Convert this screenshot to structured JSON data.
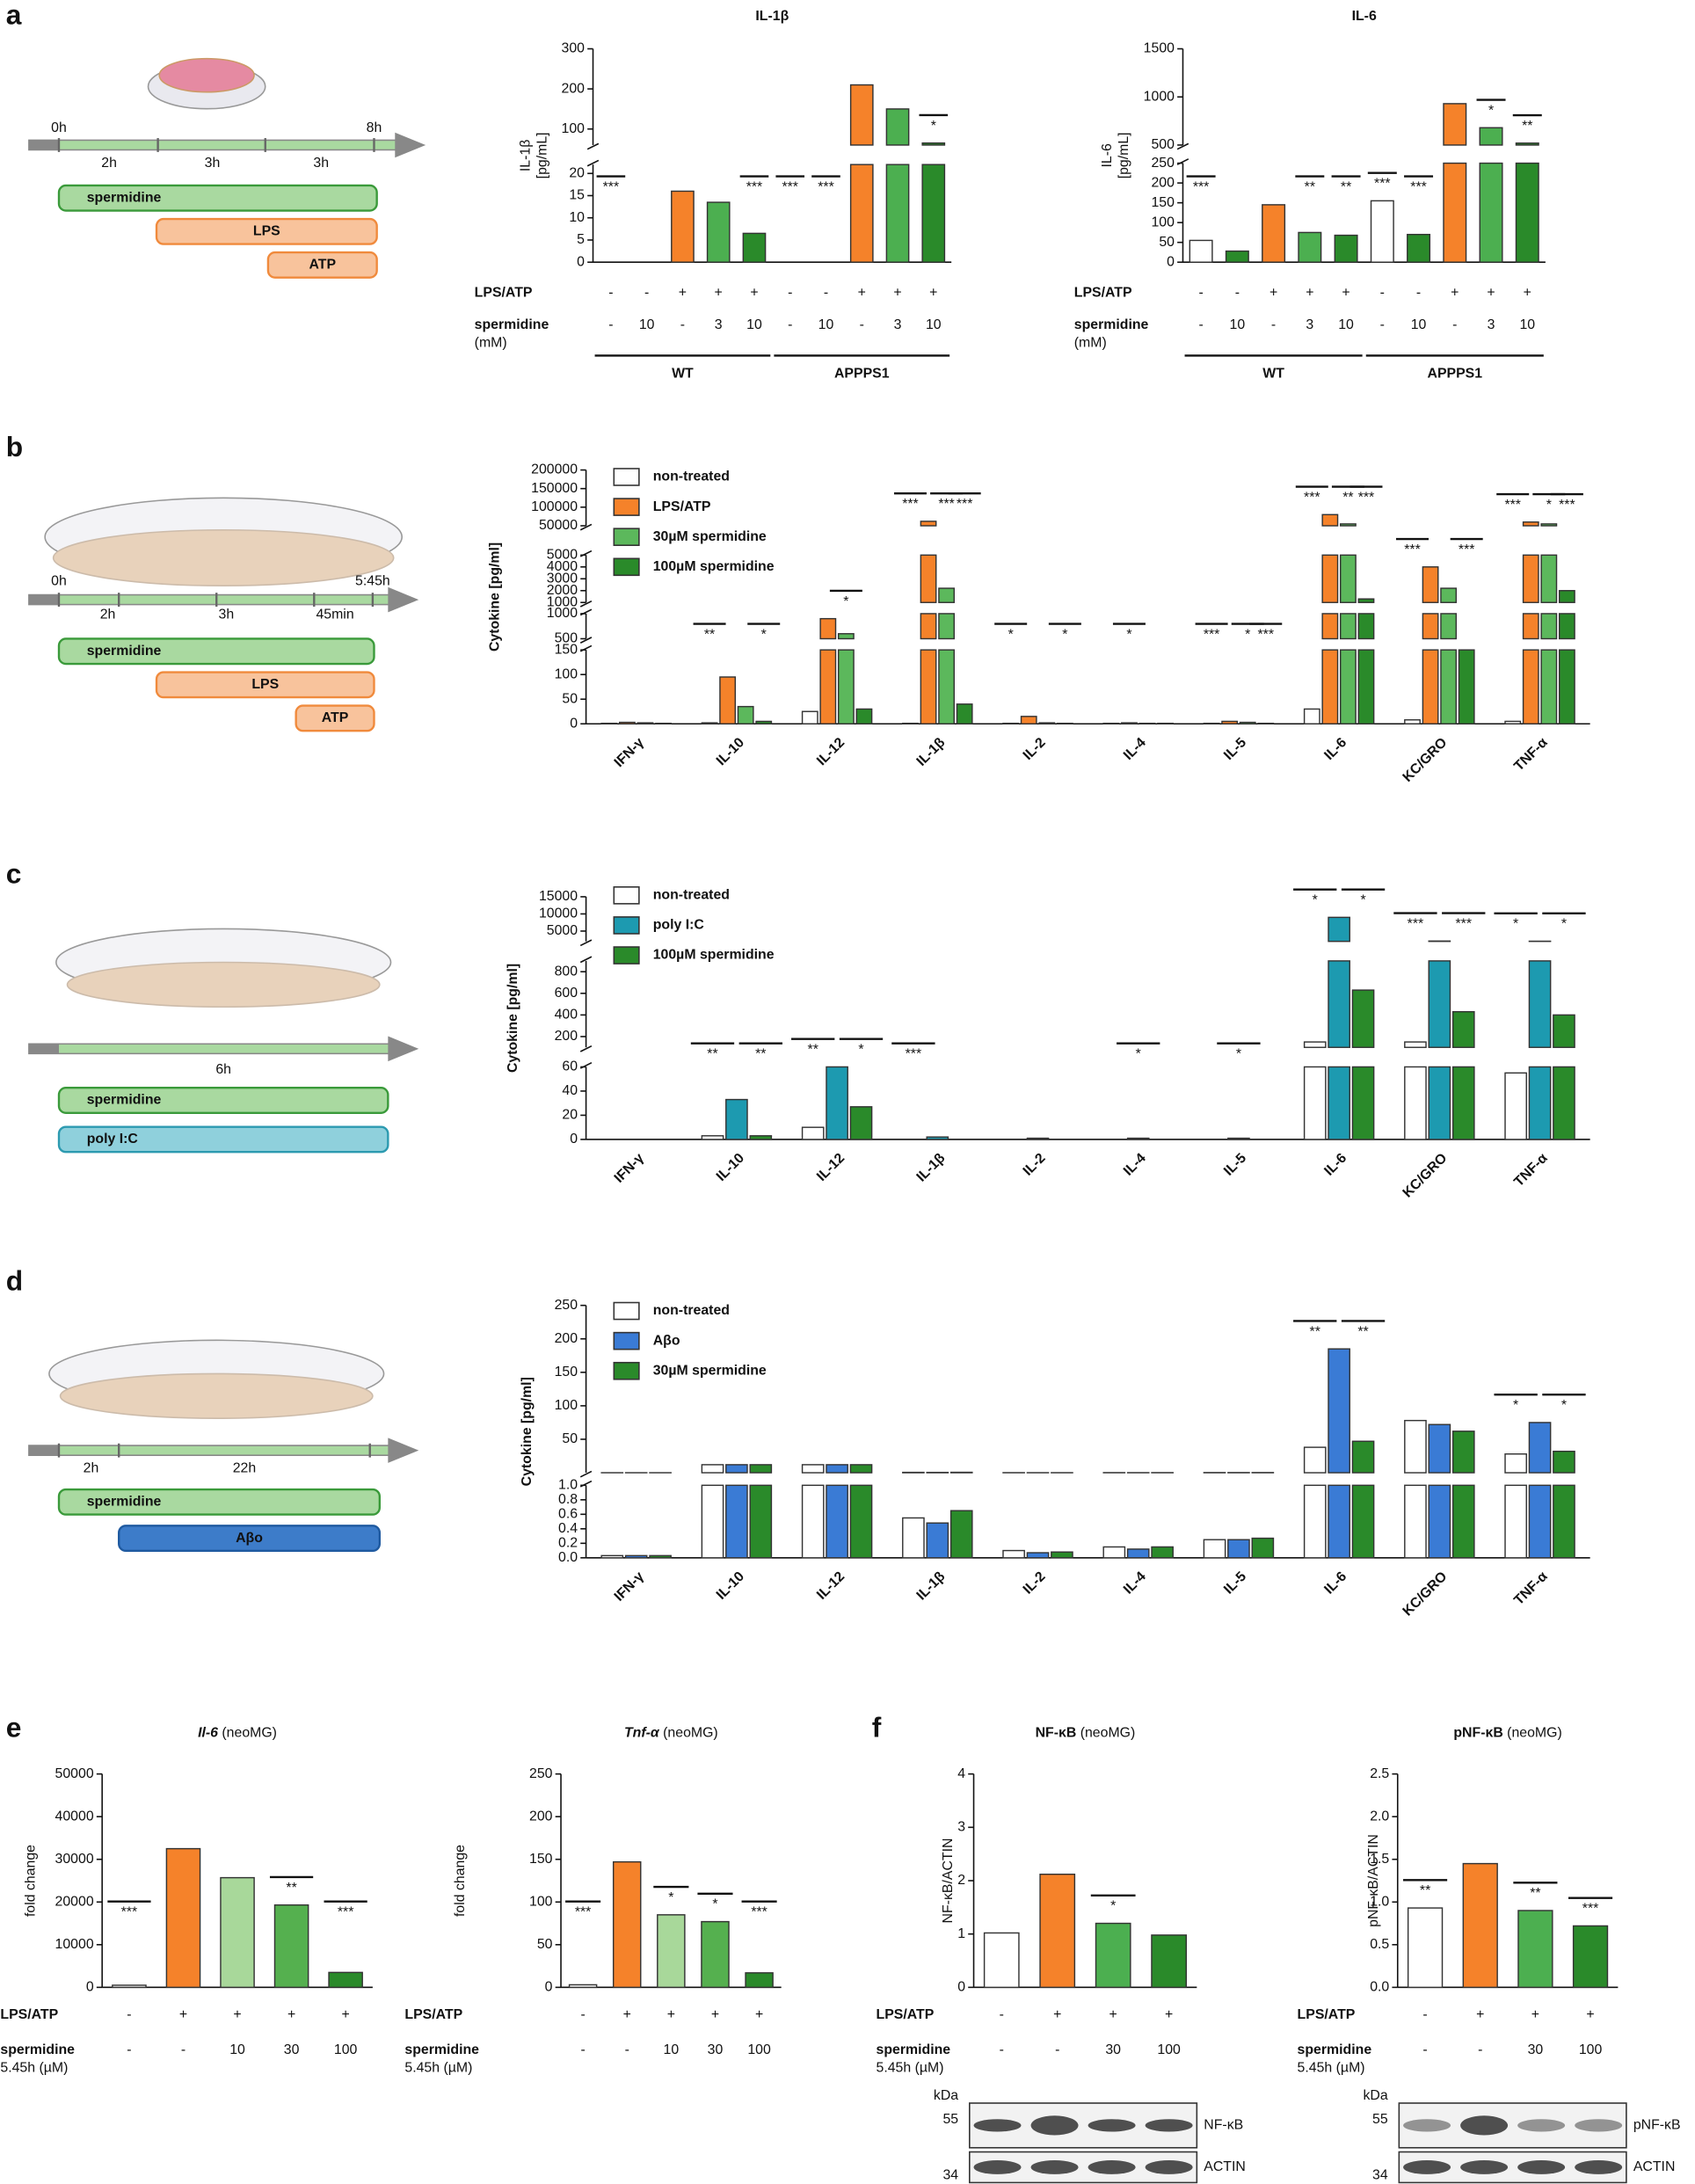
{
  "panels": [
    "a",
    "b",
    "c",
    "d",
    "e",
    "f"
  ],
  "diagrams": [
    {
      "times": [
        "0h",
        "8h"
      ],
      "intervals": [
        "2h",
        "3h",
        "3h"
      ],
      "treatments": [
        "spermidine",
        "LPS",
        "ATP"
      ]
    },
    {
      "times": [
        "0h",
        "5:45h"
      ],
      "intervals": [
        "2h",
        "3h",
        "45min"
      ],
      "treatments": [
        "spermidine",
        "LPS",
        "ATP"
      ]
    },
    {
      "times": [],
      "intervals": [
        "6h"
      ],
      "treatments": [
        "spermidine",
        "poly I:C"
      ]
    },
    {
      "times": [],
      "intervals": [
        "2h",
        "22h"
      ],
      "treatments": [
        "spermidine",
        "Aβo"
      ]
    }
  ],
  "blots": [
    {
      "unit": "kDa",
      "markers": [
        "55",
        "34"
      ],
      "bands": [
        "NF-κB",
        "ACTIN"
      ]
    },
    {
      "unit": "kDa",
      "markers": [
        "55",
        "34"
      ],
      "bands": [
        "pNF-κB",
        "ACTIN"
      ]
    }
  ],
  "chart_data": [
    {
      "type": "bar",
      "title": "IL-1β",
      "ylabel": [
        "IL-1β",
        "[pg/mL]"
      ],
      "values": [
        0,
        0,
        16,
        13.5,
        6.5,
        0,
        0,
        210,
        150,
        65
      ],
      "colors": [
        "#ffffff",
        "#2a8a2a",
        "#f5822a",
        "#4caf50",
        "#2a8a2a",
        "#ffffff",
        "#2a8a2a",
        "#f5822a",
        "#4caf50",
        "#2a8a2a"
      ],
      "ysegments": [
        {
          "ylim": [
            0,
            22
          ],
          "yticks": [
            0,
            5,
            10,
            15,
            20
          ]
        },
        {
          "ylim": [
            60,
            300
          ],
          "yticks": [
            100,
            200,
            300
          ]
        }
      ],
      "rows": [
        {
          "label": "LPS/ATP",
          "cells": [
            "-",
            "-",
            "+",
            "+",
            "+",
            "-",
            "-",
            "+",
            "+",
            "+"
          ]
        },
        {
          "label": "spermidine",
          "sublabel": "(mM)",
          "cells": [
            "-",
            "10",
            "-",
            "3",
            "10",
            "-",
            "10",
            "-",
            "3",
            "10"
          ]
        }
      ],
      "groups": [
        {
          "label": "WT",
          "from": 0,
          "to": 4
        },
        {
          "label": "APPPS1",
          "from": 5,
          "to": 9
        }
      ],
      "annotations": [
        {
          "text": "***",
          "category": 0
        },
        {
          "text": "***",
          "category": 4
        },
        {
          "text": "***",
          "category": 5
        },
        {
          "text": "***",
          "category": 6
        },
        {
          "text": "*",
          "category": 9
        }
      ]
    },
    {
      "type": "bar",
      "title": "IL-6",
      "ylabel": [
        "IL-6",
        "[pg/mL]"
      ],
      "values": [
        55,
        28,
        145,
        75,
        68,
        155,
        70,
        930,
        680,
        520
      ],
      "colors": [
        "#ffffff",
        "#2a8a2a",
        "#f5822a",
        "#4caf50",
        "#2a8a2a",
        "#ffffff",
        "#2a8a2a",
        "#f5822a",
        "#4caf50",
        "#2a8a2a"
      ],
      "ysegments": [
        {
          "ylim": [
            0,
            250
          ],
          "yticks": [
            0,
            50,
            100,
            150,
            200,
            250
          ]
        },
        {
          "ylim": [
            500,
            1500
          ],
          "yticks": [
            500,
            1000,
            1500
          ]
        }
      ],
      "rows": [
        {
          "label": "LPS/ATP",
          "cells": [
            "-",
            "-",
            "+",
            "+",
            "+",
            "-",
            "-",
            "+",
            "+",
            "+"
          ]
        },
        {
          "label": "spermidine",
          "sublabel": "(mM)",
          "cells": [
            "-",
            "10",
            "-",
            "3",
            "10",
            "-",
            "10",
            "-",
            "3",
            "10"
          ]
        }
      ],
      "groups": [
        {
          "label": "WT",
          "from": 0,
          "to": 4
        },
        {
          "label": "APPPS1",
          "from": 5,
          "to": 9
        }
      ],
      "annotations": [
        {
          "text": "***",
          "category": 0
        },
        {
          "text": "**",
          "category": 3
        },
        {
          "text": "**",
          "category": 4
        },
        {
          "text": "***",
          "category": 5
        },
        {
          "text": "***",
          "category": 6
        },
        {
          "text": "*",
          "category": 8
        },
        {
          "text": "**",
          "category": 9
        }
      ]
    },
    {
      "type": "bar",
      "ylabel": [
        "Cytokine [pg/ml]"
      ],
      "categories": [
        "IFN-γ",
        "IL-10",
        "IL-12",
        "IL-1β",
        "IL-2",
        "IL-4",
        "IL-5",
        "IL-6",
        "KC/GRO",
        "TNF-α"
      ],
      "series": [
        {
          "name": "non-treated",
          "color": "#ffffff",
          "values": [
            1,
            2,
            25,
            1,
            1,
            1,
            1,
            30,
            8,
            5
          ]
        },
        {
          "name": "LPS/ATP",
          "color": "#f5822a",
          "values": [
            3,
            95,
            900,
            62000,
            15,
            2,
            5,
            80000,
            4000,
            60000
          ]
        },
        {
          "name": "30µM spermidine",
          "color": "#5cb85c",
          "values": [
            2,
            35,
            600,
            2200,
            2,
            1,
            3,
            55000,
            2200,
            55000
          ]
        },
        {
          "name": "100µM spermidine",
          "color": "#2a8a2a",
          "values": [
            1,
            5,
            30,
            40,
            1,
            1,
            1,
            1300,
            500,
            2000
          ]
        }
      ],
      "ysegments": [
        {
          "ylim": [
            0,
            150
          ],
          "yticks": [
            0,
            50,
            100,
            150
          ]
        },
        {
          "ylim": [
            500,
            1000
          ],
          "yticks": [
            500,
            1000
          ]
        },
        {
          "ylim": [
            1000,
            5000
          ],
          "yticks": [
            1000,
            2000,
            3000,
            4000,
            5000
          ]
        },
        {
          "ylim": [
            50000,
            200000
          ],
          "yticks": [
            50000,
            100000,
            150000,
            200000
          ]
        }
      ],
      "annotations": [
        {
          "text": "**",
          "category": 1,
          "series": 0
        },
        {
          "text": "*",
          "category": 1,
          "series": 3
        },
        {
          "text": "*",
          "category": 2,
          "series": 2
        },
        {
          "text": "***",
          "category": 3,
          "series": 0
        },
        {
          "text": "***",
          "category": 3,
          "series": 2
        },
        {
          "text": "***",
          "category": 3,
          "series": 3
        },
        {
          "text": "*",
          "category": 4,
          "series": 0
        },
        {
          "text": "*",
          "category": 4,
          "series": 3
        },
        {
          "text": "*",
          "category": 5,
          "series": 1
        },
        {
          "text": "***",
          "category": 6,
          "series": 0
        },
        {
          "text": "*",
          "category": 6,
          "series": 2
        },
        {
          "text": "***",
          "category": 6,
          "series": 3
        },
        {
          "text": "***",
          "category": 7,
          "series": 0
        },
        {
          "text": "**",
          "category": 7,
          "series": 2
        },
        {
          "text": "***",
          "category": 7,
          "series": 3
        },
        {
          "text": "***",
          "category": 8,
          "series": 0
        },
        {
          "text": "***",
          "category": 8,
          "series": 3
        },
        {
          "text": "***",
          "category": 9,
          "series": 0
        },
        {
          "text": "*",
          "category": 9,
          "series": 2
        },
        {
          "text": "***",
          "category": 9,
          "series": 3
        }
      ]
    },
    {
      "type": "bar",
      "ylabel": [
        "Cytokine [pg/ml]"
      ],
      "categories": [
        "IFN-γ",
        "IL-10",
        "IL-12",
        "IL-1β",
        "IL-2",
        "IL-4",
        "IL-5",
        "IL-6",
        "KC/GRO",
        "TNF-α"
      ],
      "series": [
        {
          "name": "non-treated",
          "color": "#ffffff",
          "values": [
            0,
            3,
            10,
            0,
            0,
            0,
            0,
            150,
            150,
            55
          ]
        },
        {
          "name": "poly I:C",
          "color": "#1d9ab0",
          "values": [
            0,
            33,
            62,
            2,
            1,
            1,
            1,
            9000,
            2100,
            2050
          ]
        },
        {
          "name": "100µM spermidine",
          "color": "#2a8a2a",
          "values": [
            0,
            3,
            27,
            0,
            0,
            0,
            0,
            630,
            430,
            400
          ]
        }
      ],
      "ysegments": [
        {
          "ylim": [
            0,
            60
          ],
          "yticks": [
            0,
            20,
            40,
            60
          ]
        },
        {
          "ylim": [
            100,
            900
          ],
          "yticks": [
            200,
            400,
            600,
            800
          ]
        },
        {
          "ylim": [
            2000,
            15000
          ],
          "yticks": [
            5000,
            10000,
            15000
          ]
        }
      ],
      "annotations": [
        {
          "text": "**",
          "category": 1,
          "series": 0
        },
        {
          "text": "**",
          "category": 1,
          "series": 2
        },
        {
          "text": "**",
          "category": 2,
          "series": 0
        },
        {
          "text": "*",
          "category": 2,
          "series": 2
        },
        {
          "text": "***",
          "category": 3,
          "series": 0
        },
        {
          "text": "*",
          "category": 5,
          "series": 1
        },
        {
          "text": "*",
          "category": 6,
          "series": 1
        },
        {
          "text": "*",
          "category": 7,
          "series": 0
        },
        {
          "text": "*",
          "category": 7,
          "series": 2
        },
        {
          "text": "***",
          "category": 8,
          "series": 0
        },
        {
          "text": "***",
          "category": 8,
          "series": 2
        },
        {
          "text": "*",
          "category": 9,
          "series": 0
        },
        {
          "text": "*",
          "category": 9,
          "series": 2
        }
      ]
    },
    {
      "type": "bar",
      "ylabel": [
        "Cytokine [pg/ml]"
      ],
      "categories": [
        "IFN-γ",
        "IL-10",
        "IL-12",
        "IL-1β",
        "IL-2",
        "IL-4",
        "IL-5",
        "IL-6",
        "KC/GRO",
        "TNF-α"
      ],
      "series": [
        {
          "name": "non-treated",
          "color": "#ffffff",
          "values": [
            0.03,
            12,
            12,
            0.55,
            0.1,
            0.15,
            0.25,
            38,
            78,
            28
          ]
        },
        {
          "name": "Aβo",
          "color": "#3a7bd5",
          "values": [
            0.03,
            12,
            12,
            0.48,
            0.07,
            0.12,
            0.25,
            185,
            72,
            75
          ]
        },
        {
          "name": "30µM spermidine",
          "color": "#2a8a2a",
          "values": [
            0.03,
            12,
            12,
            0.65,
            0.08,
            0.15,
            0.27,
            47,
            62,
            32
          ]
        }
      ],
      "ysegments": [
        {
          "ylim": [
            0,
            1
          ],
          "yticks": [
            {
              "value": 0,
              "label": "0.0"
            },
            0.2,
            0.4,
            0.6,
            0.8,
            {
              "value": 1,
              "label": "1.0"
            }
          ]
        },
        {
          "ylim": [
            0,
            250
          ],
          "yticks": [
            50,
            100,
            150,
            200,
            250
          ]
        }
      ],
      "annotations": [
        {
          "text": "**",
          "category": 7,
          "series": 0
        },
        {
          "text": "**",
          "category": 7,
          "series": 2
        },
        {
          "text": "*",
          "category": 9,
          "series": 0
        },
        {
          "text": "*",
          "category": 9,
          "series": 2
        }
      ]
    },
    {
      "type": "bar",
      "title": "Il-6",
      "title_note": "(neoMG)",
      "title_style": "italic",
      "ylabel": [
        "fold change"
      ],
      "values": [
        500,
        32500,
        25700,
        19300,
        3500
      ],
      "colors": [
        "#ffffff",
        "#f5822a",
        "#a8d89a",
        "#55b04f",
        "#2a8a2a"
      ],
      "ylim": [
        0,
        50000
      ],
      "yticks": [
        0,
        10000,
        20000,
        30000,
        40000,
        50000
      ],
      "rows": [
        {
          "label": "LPS/ATP",
          "cells": [
            "-",
            "+",
            "+",
            "+",
            "+"
          ]
        },
        {
          "label": "spermidine",
          "sublabel": "5.45h (µM)",
          "cells": [
            "-",
            "-",
            "10",
            "30",
            "100"
          ]
        }
      ],
      "annotations": [
        {
          "text": "***",
          "category": 0
        },
        {
          "text": "**",
          "category": 3
        },
        {
          "text": "***",
          "category": 4
        }
      ]
    },
    {
      "type": "bar",
      "title": "Tnf-α",
      "title_note": "(neoMG)",
      "title_style": "italic",
      "ylabel": [
        "fold change"
      ],
      "values": [
        3,
        147,
        85,
        77,
        17
      ],
      "colors": [
        "#ffffff",
        "#f5822a",
        "#a8d89a",
        "#55b04f",
        "#2a8a2a"
      ],
      "ylim": [
        0,
        250
      ],
      "yticks": [
        0,
        50,
        100,
        150,
        200,
        250
      ],
      "rows": [
        {
          "label": "LPS/ATP",
          "cells": [
            "-",
            "+",
            "+",
            "+",
            "+"
          ]
        },
        {
          "label": "spermidine",
          "sublabel": "5.45h (µM)",
          "cells": [
            "-",
            "-",
            "10",
            "30",
            "100"
          ]
        }
      ],
      "annotations": [
        {
          "text": "***",
          "category": 0
        },
        {
          "text": "*",
          "category": 2
        },
        {
          "text": "*",
          "category": 3
        },
        {
          "text": "***",
          "category": 4
        }
      ]
    },
    {
      "type": "bar",
      "title": "NF-κB",
      "title_note": "(neoMG)",
      "title_style": "bold",
      "ylabel": [
        "NF-κB/ACTIN"
      ],
      "values": [
        1.02,
        2.12,
        1.2,
        0.98
      ],
      "colors": [
        "#ffffff",
        "#f5822a",
        "#4caf50",
        "#2a8a2a"
      ],
      "ylim": [
        0,
        4
      ],
      "yticks": [
        0,
        1,
        2,
        3,
        4
      ],
      "rows": [
        {
          "label": "LPS/ATP",
          "cells": [
            "-",
            "+",
            "+",
            "+"
          ]
        },
        {
          "label": "spermidine",
          "sublabel": "5.45h (µM)",
          "cells": [
            "-",
            "-",
            "30",
            "100"
          ]
        }
      ],
      "annotations": [
        {
          "text": "*",
          "category": 2
        }
      ]
    },
    {
      "type": "bar",
      "title": "pNF-κB",
      "title_note": "(neoMG)",
      "title_style": "bold",
      "ylabel": [
        "pNF-κB/ACTIN"
      ],
      "values": [
        0.93,
        1.45,
        0.9,
        0.72
      ],
      "colors": [
        "#ffffff",
        "#f5822a",
        "#4caf50",
        "#2a8a2a"
      ],
      "ylim": [
        0,
        2.5
      ],
      "yticks": [
        {
          "value": 0,
          "label": "0.0"
        },
        0.5,
        {
          "value": 1,
          "label": "1.0"
        },
        1.5,
        {
          "value": 2,
          "label": "2.0"
        },
        2.5
      ],
      "rows": [
        {
          "label": "LPS/ATP",
          "cells": [
            "-",
            "+",
            "+",
            "+"
          ]
        },
        {
          "label": "spermidine",
          "sublabel": "5.45h (µM)",
          "cells": [
            "-",
            "-",
            "30",
            "100"
          ]
        }
      ],
      "annotations": [
        {
          "text": "**",
          "category": 0
        },
        {
          "text": "**",
          "category": 2
        },
        {
          "text": "***",
          "category": 3
        }
      ]
    }
  ]
}
